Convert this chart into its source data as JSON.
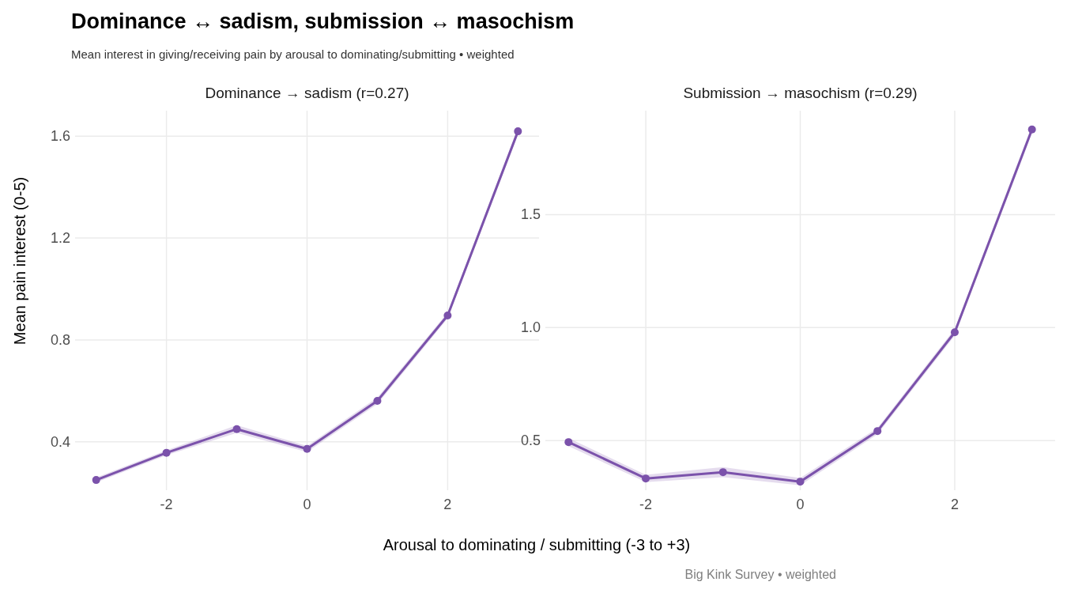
{
  "chart_data": [
    {
      "type": "line",
      "title": "Dominance → sadism  (r=0.27)",
      "xlabel": "Arousal to dominating / submitting (-3 to +3)",
      "ylabel": "Mean pain interest (0-5)",
      "annotations": [
        "Dominance ↔ sadism, submission ↔ masochism",
        "Mean interest in giving/receiving pain by arousal to dominating/submitting  •  weighted"
      ],
      "x": [
        -3,
        -2,
        -1,
        0,
        1,
        2,
        3
      ],
      "series": [
        {
          "color": "#7b52ab",
          "values": [
            0.25,
            0.357,
            0.45,
            0.372,
            0.561,
            0.896,
            1.619
          ],
          "lower": [
            0.24,
            0.347,
            0.435,
            0.36,
            0.548,
            0.884,
            1.605
          ],
          "upper": [
            0.26,
            0.367,
            0.465,
            0.384,
            0.574,
            0.908,
            1.633
          ]
        }
      ],
      "xlim": [
        -3.3,
        3.3
      ],
      "ylim": [
        0.21,
        1.7
      ],
      "xticks": [
        -2,
        0,
        2
      ],
      "yticks": [
        0.4,
        0.8,
        1.2,
        1.6
      ],
      "grid": true,
      "marker": "circle",
      "line_style": "solid"
    },
    {
      "type": "line",
      "title": "Submission → masochism  (r=0.29)",
      "annotations": [
        "Big Kink Survey  •  weighted"
      ],
      "x": [
        -3,
        -2,
        -1,
        0,
        1,
        2,
        3
      ],
      "series": [
        {
          "color": "#7b52ab",
          "values": [
            0.493,
            0.332,
            0.36,
            0.318,
            0.542,
            0.979,
            1.877
          ],
          "lower": [
            0.475,
            0.316,
            0.338,
            0.302,
            0.528,
            0.964,
            1.86
          ],
          "upper": [
            0.511,
            0.348,
            0.382,
            0.334,
            0.556,
            0.994,
            1.894
          ]
        }
      ],
      "xlim": [
        -3.3,
        3.3
      ],
      "ylim": [
        0.28,
        1.96
      ],
      "xticks": [
        -2,
        0,
        2
      ],
      "yticks": [
        0.5,
        {
          "value": 1,
          "label": "1.0"
        },
        1.5
      ],
      "grid": true,
      "marker": "circle",
      "line_style": "solid"
    }
  ]
}
